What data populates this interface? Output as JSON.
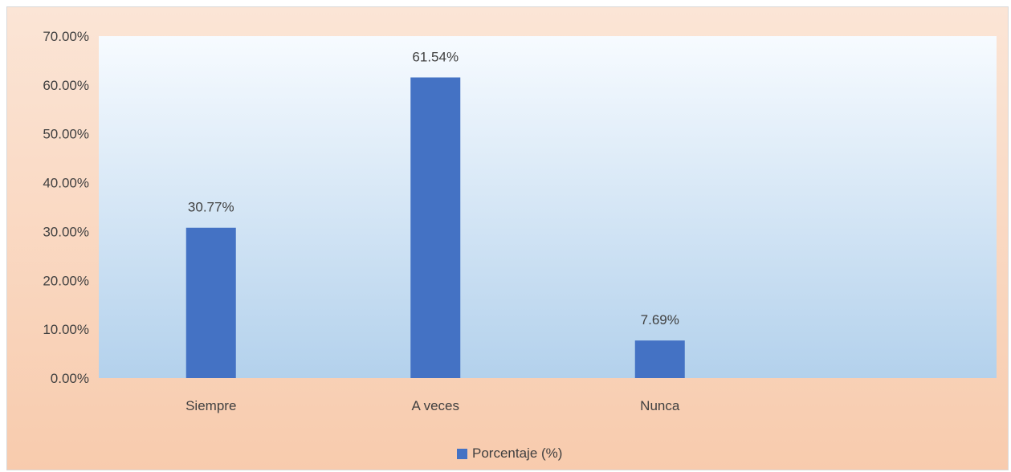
{
  "chart_data": {
    "type": "bar",
    "categories": [
      "Siempre",
      "A veces",
      "Nunca",
      ""
    ],
    "series": [
      {
        "name": "Porcentaje (%)",
        "values": [
          30.77,
          61.54,
          7.69,
          null
        ],
        "labels": [
          "30.77%",
          "61.54%",
          "7.69%",
          ""
        ]
      }
    ],
    "title": "",
    "xlabel": "",
    "ylabel": "",
    "ylim": [
      0,
      70
    ],
    "yticks": [
      "0.00%",
      "10.00%",
      "20.00%",
      "30.00%",
      "40.00%",
      "50.00%",
      "60.00%",
      "70.00%"
    ],
    "grid": false,
    "legend": "bottom",
    "colors": {
      "bar": "#4472c4",
      "plot_top": "#f7fbff",
      "plot_bottom": "#b3d1ec",
      "frame_top": "#fbe5d6",
      "frame_bottom": "#f8cbad"
    }
  }
}
